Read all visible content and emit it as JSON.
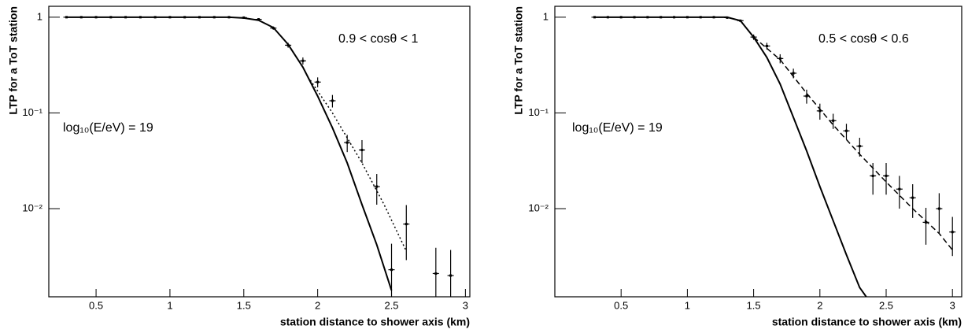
{
  "chart_data": [
    {
      "type": "errorbar",
      "log_y": true,
      "x_label": "station distance to shower axis (km)",
      "y_label": "LTP for a ToT station",
      "annotations": [
        "0.9 < cosθ < 1",
        "log₁₀(E/eV) = 19"
      ],
      "xlim": [
        0.18,
        3.03
      ],
      "ylim": [
        0.0012,
        1.3
      ],
      "xticks": [
        0.5,
        1,
        1.5,
        2,
        2.5,
        3
      ],
      "yticks": [
        {
          "value": 0.01,
          "label": "10⁻²"
        },
        {
          "value": 0.1,
          "label": "10⁻¹"
        },
        1
      ],
      "series": [
        {
          "style": "points",
          "color": "#000000",
          "x": [
            0.3,
            0.4,
            0.5,
            0.6,
            0.7,
            0.8,
            0.9,
            1.0,
            1.1,
            1.2,
            1.3,
            1.4,
            1.5,
            1.6,
            1.7,
            1.8,
            1.9,
            2.0,
            2.1,
            2.2,
            2.3,
            2.4,
            2.5,
            2.6,
            2.8,
            2.9
          ],
          "values": [
            1,
            1,
            1,
            1,
            1,
            1,
            1,
            1,
            1,
            1,
            1,
            1,
            0.99,
            0.95,
            0.77,
            0.51,
            0.35,
            0.21,
            0.134,
            0.049,
            0.041,
            0.017,
            0.0023,
            0.0069,
            0.0021,
            0.002
          ],
          "errors": [
            0.01,
            0.01,
            0.01,
            0.01,
            0.01,
            0.01,
            0.01,
            0.01,
            0.01,
            0.01,
            0.01,
            0.01,
            0.01,
            0.02,
            0.03,
            0.03,
            0.03,
            0.025,
            0.02,
            0.01,
            0.011,
            0.006,
            0.002,
            0.004,
            0.0018,
            0.0017
          ]
        },
        {
          "style": "solid",
          "color": "#000000",
          "x": [
            0.3,
            1.4,
            1.5,
            1.6,
            1.7,
            1.8,
            1.9,
            2.0,
            2.1,
            2.2,
            2.3,
            2.4,
            2.5
          ],
          "values": [
            1,
            1,
            0.98,
            0.93,
            0.78,
            0.52,
            0.3,
            0.15,
            0.07,
            0.03,
            0.011,
            0.0042,
            0.0014
          ]
        },
        {
          "style": "dotted",
          "color": "#000000",
          "x": [
            1.95,
            2.1,
            2.3,
            2.45,
            2.6
          ],
          "values": [
            0.22,
            0.1,
            0.03,
            0.011,
            0.0036
          ]
        }
      ]
    },
    {
      "type": "errorbar",
      "log_y": true,
      "x_label": "station distance to shower axis (km)",
      "y_label": "LTP for a ToT station",
      "annotations": [
        "0.5 < cosθ < 0.6",
        "log₁₀(E/eV) = 19"
      ],
      "xlim": [
        0,
        3.07
      ],
      "ylim": [
        0.0012,
        1.3
      ],
      "xticks": [
        0.5,
        1,
        1.5,
        2,
        2.5,
        3
      ],
      "yticks": [
        {
          "value": 0.01,
          "label": "10⁻²"
        },
        {
          "value": 0.1,
          "label": "10⁻¹"
        },
        1
      ],
      "series": [
        {
          "style": "points",
          "color": "#000000",
          "x": [
            0.3,
            0.4,
            0.5,
            0.6,
            0.7,
            0.8,
            0.9,
            1.0,
            1.1,
            1.2,
            1.3,
            1.4,
            1.5,
            1.6,
            1.7,
            1.8,
            1.9,
            2.0,
            2.1,
            2.2,
            2.3,
            2.4,
            2.5,
            2.6,
            2.7,
            2.8,
            2.9,
            3.0
          ],
          "values": [
            1,
            1,
            1,
            1,
            1,
            1,
            1,
            1,
            1,
            1,
            0.99,
            0.92,
            0.62,
            0.5,
            0.37,
            0.26,
            0.15,
            0.105,
            0.083,
            0.065,
            0.045,
            0.022,
            0.022,
            0.016,
            0.013,
            0.0072,
            0.01,
            0.0057
          ],
          "errors": [
            0.01,
            0.01,
            0.01,
            0.01,
            0.01,
            0.01,
            0.01,
            0.01,
            0.01,
            0.01,
            0.01,
            0.02,
            0.04,
            0.04,
            0.04,
            0.03,
            0.025,
            0.02,
            0.015,
            0.012,
            0.01,
            0.008,
            0.008,
            0.006,
            0.005,
            0.003,
            0.0045,
            0.0025
          ]
        },
        {
          "style": "solid",
          "color": "#000000",
          "x": [
            0.3,
            1.3,
            1.4,
            1.5,
            1.6,
            1.7,
            1.8,
            1.9,
            2.0,
            2.1,
            2.2,
            2.3,
            2.35
          ],
          "values": [
            1,
            1,
            0.92,
            0.62,
            0.38,
            0.2,
            0.09,
            0.04,
            0.017,
            0.0075,
            0.0033,
            0.0015,
            0.0012
          ]
        },
        {
          "style": "dashed",
          "color": "#000000",
          "x": [
            1.5,
            1.7,
            1.9,
            2.1,
            2.3,
            2.5,
            2.7,
            2.9,
            3.0
          ],
          "values": [
            0.62,
            0.36,
            0.16,
            0.075,
            0.037,
            0.019,
            0.01,
            0.0055,
            0.0037
          ]
        }
      ]
    }
  ]
}
